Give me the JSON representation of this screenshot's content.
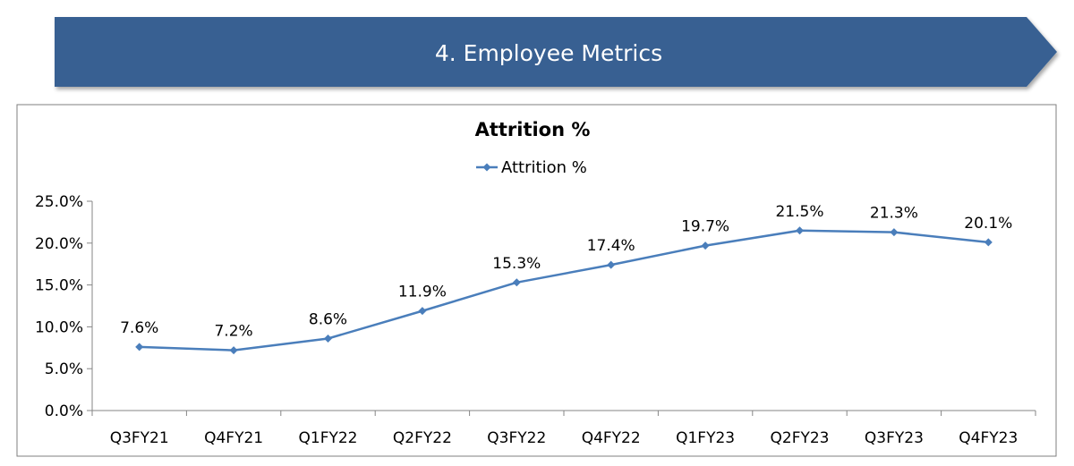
{
  "header": {
    "title": "4. Employee Metrics"
  },
  "colors": {
    "banner": "#376092",
    "series": "#4a7ebb",
    "axis": "#868686"
  },
  "chart_data": {
    "type": "line",
    "title": "Attrition %",
    "xlabel": "",
    "ylabel": "",
    "categories": [
      "Q3FY21",
      "Q4FY21",
      "Q1FY22",
      "Q2FY22",
      "Q3FY22",
      "Q4FY22",
      "Q1FY23",
      "Q2FY23",
      "Q3FY23",
      "Q4FY23"
    ],
    "series": [
      {
        "name": "Attrition %",
        "values": [
          7.6,
          7.2,
          8.6,
          11.9,
          15.3,
          17.4,
          19.7,
          21.5,
          21.3,
          20.1
        ],
        "labels": [
          "7.6%",
          "7.2%",
          "8.6%",
          "11.9%",
          "15.3%",
          "17.4%",
          "19.7%",
          "21.5%",
          "21.3%",
          "20.1%"
        ],
        "marker": "diamond"
      }
    ],
    "ylim": [
      0,
      25
    ],
    "yticks": [
      0,
      5,
      10,
      15,
      20,
      25
    ],
    "ytick_labels": [
      "0.0%",
      "5.0%",
      "10.0%",
      "15.0%",
      "20.0%",
      "25.0%"
    ],
    "grid": false,
    "legend_position": "top-center"
  }
}
